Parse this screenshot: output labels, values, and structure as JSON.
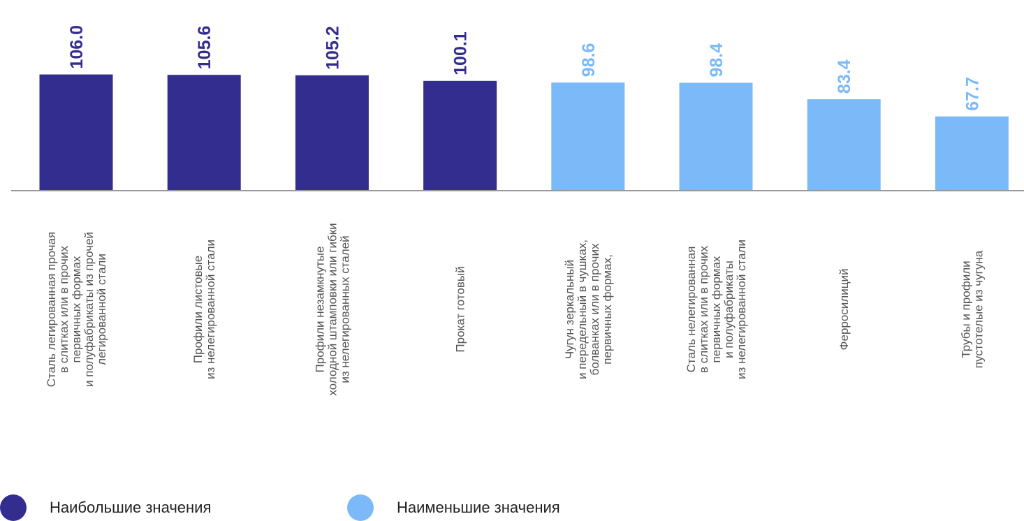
{
  "chart_data": {
    "type": "bar",
    "categories": [
      "Сталь легированная прочая\nв слитках или в прочих\nпервичных формах\nи полуфабрикаты из прочей\nлегированной стали",
      "Профили листовые\nиз нелегированной стали",
      "Профили незамкнутые\nхолодной штамповки или гибки\nиз нелегированных сталей",
      "Прокат готовый",
      "Чугун зеркальный\nи передельный в чушках,\nболванках или в прочих\nпервичных формах,",
      "Сталь нелегированная\nв слитках или в прочих\nпервичных формах\nи полуфабрикаты\nиз нелегированной стали",
      "Ферросилиций",
      "Трубы и профили\nпустотелые из чугуна"
    ],
    "values": [
      106.0,
      105.6,
      105.2,
      100.1,
      98.6,
      98.4,
      83.4,
      67.7
    ],
    "value_labels": [
      "106.0",
      "105.6",
      "105.2",
      "100.1",
      "98.6",
      "98.4",
      "83.4",
      "67.7"
    ],
    "groups": [
      "high",
      "high",
      "high",
      "high",
      "low",
      "low",
      "low",
      "low"
    ],
    "colors": {
      "high": "#322d8f",
      "low": "#7cb9f8",
      "baseline": "#999999",
      "category_text": "#555555"
    },
    "legend": [
      {
        "key": "high",
        "label": "Наибольшие значения"
      },
      {
        "key": "low",
        "label": "Наименьшие значения"
      }
    ],
    "title": "",
    "xlabel": "",
    "ylabel": ""
  }
}
